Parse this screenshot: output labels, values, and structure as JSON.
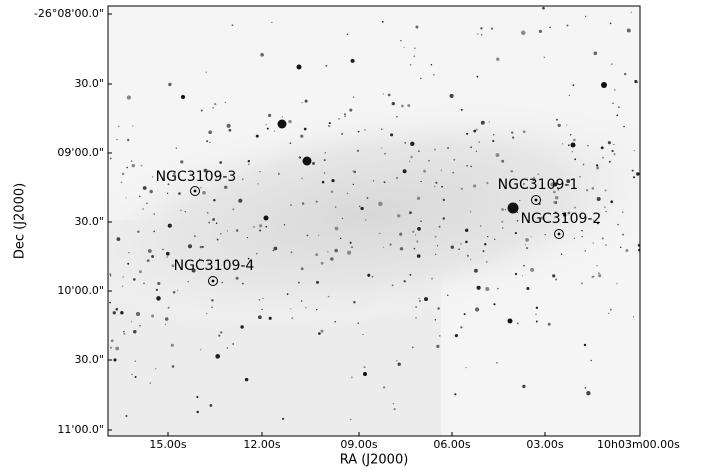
{
  "x_axis": {
    "label": "RA (J2000)",
    "ticks": [
      "15.00s",
      "12.00s",
      "09.00s",
      "06.00s",
      "03.00s",
      "10h03m00.00s"
    ]
  },
  "y_axis": {
    "label": "Dec (J2000)",
    "ticks": [
      "-26°08'00.0\"",
      "30.0\"",
      "09'00.0\"",
      "30.0\"",
      "10'00.0\"",
      "30.0\"",
      "11'00.0\""
    ]
  },
  "annotations": [
    "NGC3109-3",
    "NGC3109-4",
    "NGC3109-1",
    "NGC3109-2"
  ]
}
